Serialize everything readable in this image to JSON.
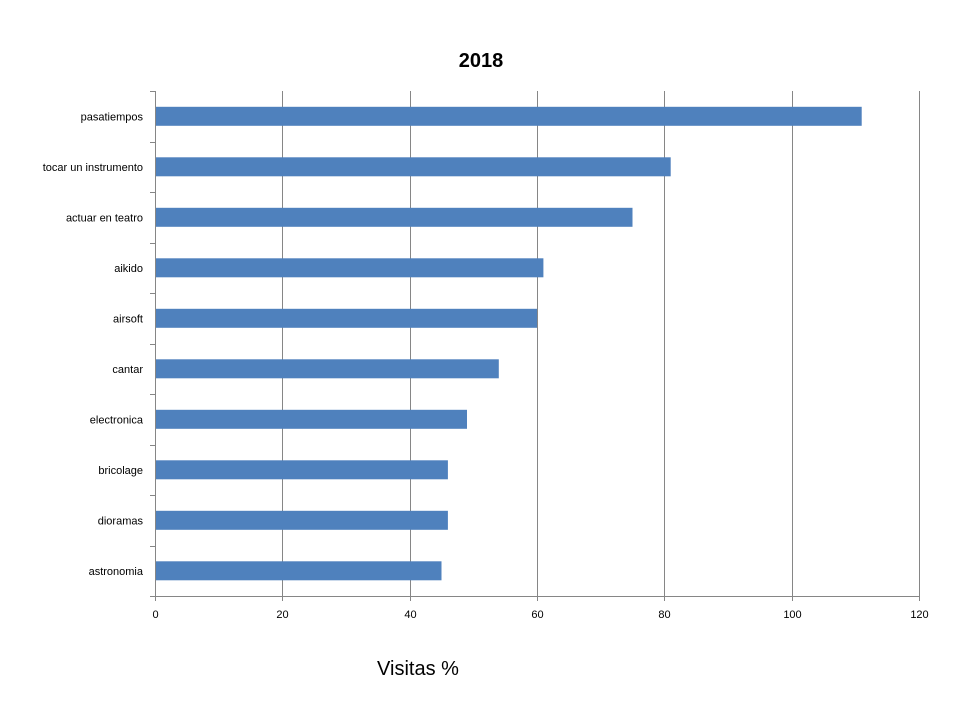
{
  "chart_data": {
    "type": "bar",
    "orientation": "horizontal",
    "title": "2018",
    "xlabel": "Visitas %",
    "ylabel": "",
    "categories": [
      "pasatiempos",
      "tocar un instrumento",
      "actuar en teatro",
      "aikido",
      "airsoft",
      "cantar",
      "electronica",
      "bricolage",
      "dioramas",
      "astronomia"
    ],
    "values": [
      111,
      81,
      75,
      61,
      60,
      54,
      49,
      46,
      46,
      45
    ],
    "xlim": [
      0,
      120
    ],
    "x_ticks": [
      0,
      20,
      40,
      60,
      80,
      100,
      120
    ],
    "grid": "vertical major gridlines",
    "legend": "none",
    "bar_color": "#4F81BD"
  }
}
